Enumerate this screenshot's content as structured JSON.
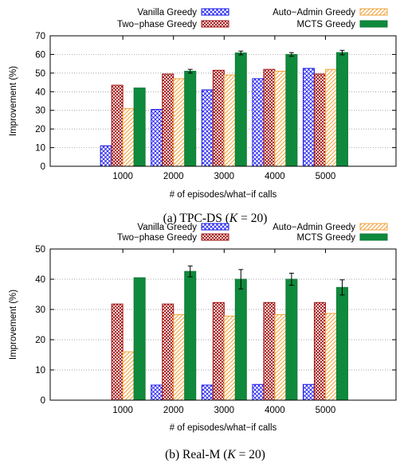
{
  "chart_data": [
    {
      "type": "bar",
      "caption": {
        "before": "(a) TPC-DS (",
        "var": "K",
        "after": " = 20)"
      },
      "xlabel": "# of episodes/what−if calls",
      "ylabel": "Improvement (%)",
      "ylim": [
        0,
        70
      ],
      "yticks": [
        0,
        10,
        20,
        30,
        40,
        50,
        60,
        70
      ],
      "grid": true,
      "legend_position": "top",
      "categories": [
        "1000",
        "2000",
        "3000",
        "4000",
        "5000"
      ],
      "series": [
        {
          "name": "Vanilla Greedy",
          "pattern": "crosshatch-blue",
          "values": [
            11,
            30.5,
            41,
            47,
            52.5
          ]
        },
        {
          "name": "Two−phase Greedy",
          "pattern": "dots-red",
          "values": [
            43.5,
            49.5,
            51.5,
            52,
            49.5
          ]
        },
        {
          "name": "Auto−Admin Greedy",
          "pattern": "diagonal-orange",
          "values": [
            31,
            47,
            49,
            51,
            52
          ]
        },
        {
          "name": "MCTS Greedy",
          "pattern": "solid-green",
          "values": [
            42,
            51,
            60.8,
            60,
            61
          ],
          "errors": [
            0,
            1,
            1,
            1,
            1.2
          ]
        }
      ]
    },
    {
      "type": "bar",
      "caption": {
        "before": "(b) Real-M (",
        "var": "K",
        "after": " = 20)"
      },
      "xlabel": "# of episodes/what−if calls",
      "ylabel": "Improvement (%)",
      "ylim": [
        0,
        50
      ],
      "yticks": [
        0,
        10,
        20,
        30,
        40,
        50
      ],
      "grid": true,
      "legend_position": "top",
      "categories": [
        "1000",
        "2000",
        "3000",
        "4000",
        "5000"
      ],
      "series": [
        {
          "name": "Vanilla Greedy",
          "pattern": "crosshatch-blue",
          "values": [
            0,
            5,
            5,
            5.2,
            5.2
          ]
        },
        {
          "name": "Two−phase Greedy",
          "pattern": "dots-red",
          "values": [
            31.8,
            31.8,
            32.3,
            32.3,
            32.3
          ]
        },
        {
          "name": "Auto−Admin Greedy",
          "pattern": "diagonal-orange",
          "values": [
            16,
            28.3,
            27.8,
            28.3,
            28.7
          ]
        },
        {
          "name": "MCTS Greedy",
          "pattern": "solid-green",
          "values": [
            40.5,
            42.6,
            40,
            40,
            37.3
          ],
          "errors": [
            0,
            1.8,
            3.2,
            2,
            2.5
          ]
        }
      ]
    }
  ],
  "colors": {
    "vanilla": "#1a1aee",
    "two_phase": "#a31515",
    "auto_admin": "#f2a23a",
    "mcts": "#117a3a",
    "mcts_fill": "#0f8a3c"
  }
}
